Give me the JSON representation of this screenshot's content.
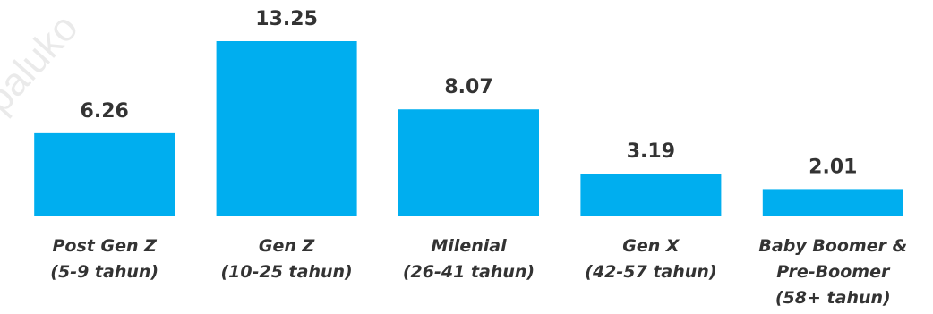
{
  "watermark": "://paluko",
  "colors": {
    "bar": "#00aeef",
    "axis": "#d9d9d9",
    "text": "#333333"
  },
  "chart_data": {
    "type": "bar",
    "categories": [
      [
        "Post Gen Z",
        "(5-9 tahun)"
      ],
      [
        "Gen Z",
        "(10-25 tahun)"
      ],
      [
        "Milenial",
        "(26-41 tahun)"
      ],
      [
        "Gen X",
        "(42-57 tahun)"
      ],
      [
        "Baby Boomer &",
        "Pre-Boomer",
        "(58+ tahun)"
      ]
    ],
    "values": [
      6.26,
      13.25,
      8.07,
      3.19,
      2.01
    ],
    "value_labels": [
      "6.26",
      "13.25",
      "8.07",
      "3.19",
      "2.01"
    ],
    "ylim": [
      0,
      13.25
    ],
    "grid": false,
    "legend": "none"
  }
}
